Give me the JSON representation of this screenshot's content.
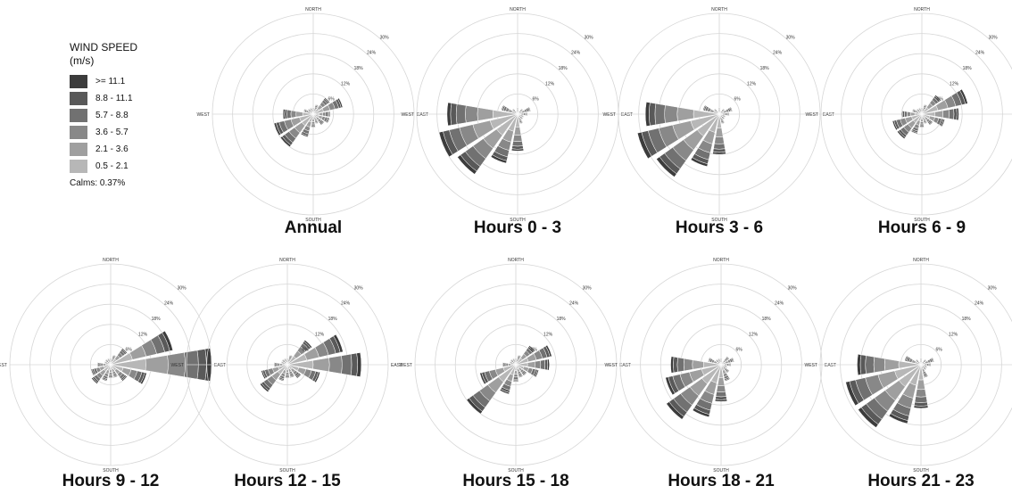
{
  "legend": {
    "title_line1": "WIND SPEED",
    "title_line2": "(m/s)",
    "items": [
      {
        "label": ">= 11.1",
        "color": "#3c3c3c"
      },
      {
        "label": "8.8 - 11.1",
        "color": "#595959"
      },
      {
        "label": "5.7 -  8.8",
        "color": "#717171"
      },
      {
        "label": "3.6 -  5.7",
        "color": "#888888"
      },
      {
        "label": "2.1 -  3.6",
        "color": "#9f9f9f"
      },
      {
        "label": "0.5 -  2.1",
        "color": "#b7b7b7"
      }
    ],
    "calms": "Calms: 0.37%"
  },
  "axis_labels": {
    "north": "NORTH",
    "south": "SOUTH",
    "east": "EAST",
    "west": "WEST"
  },
  "ring_labels": [
    "6%",
    "12%",
    "18%",
    "24%",
    "30%"
  ],
  "chart_data": {
    "type": "wind-rose",
    "units": "% of time",
    "scale_max": 30,
    "directions": [
      "N",
      "NNE",
      "NE",
      "ENE",
      "E",
      "ESE",
      "SE",
      "SSE",
      "S",
      "SSW",
      "SW",
      "WSW",
      "W",
      "WNW",
      "NW",
      "NNW"
    ],
    "speed_bins": [
      ">= 11.1",
      "8.8 - 11.1",
      "5.7 -  8.8",
      "3.6 -  5.7",
      "2.1 -  3.6",
      "0.5 -  2.1"
    ],
    "panels": [
      {
        "title": "Annual",
        "values": [
          2,
          3,
          6,
          9,
          5,
          5,
          4,
          3,
          4,
          7,
          12,
          12,
          9,
          3,
          2,
          2
        ]
      },
      {
        "title": "Hours 0 - 3",
        "values": [
          2,
          1,
          2,
          4,
          3,
          2,
          2,
          3,
          11,
          15,
          22,
          24,
          21,
          5,
          2,
          1
        ]
      },
      {
        "title": "Hours 3 - 6",
        "values": [
          2,
          1,
          2,
          4,
          3,
          2,
          2,
          3,
          12,
          16,
          23,
          25,
          22,
          5,
          2,
          1
        ]
      },
      {
        "title": "Hours 6 - 9",
        "values": [
          2,
          3,
          7,
          14,
          11,
          7,
          4,
          3,
          4,
          6,
          9,
          9,
          6,
          3,
          2,
          2
        ]
      },
      {
        "title": "Hours 9 - 12",
        "values": [
          2,
          3,
          6,
          19,
          30,
          11,
          6,
          4,
          4,
          5,
          7,
          6,
          4,
          2,
          2,
          2
        ]
      },
      {
        "title": "Hours 12 - 15",
        "values": [
          2,
          3,
          9,
          17,
          22,
          10,
          5,
          4,
          4,
          5,
          10,
          8,
          4,
          2,
          2,
          2
        ]
      },
      {
        "title": "Hours 15 - 18",
        "values": [
          2,
          3,
          7,
          11,
          10,
          7,
          4,
          4,
          5,
          9,
          18,
          11,
          4,
          2,
          2,
          2
        ]
      },
      {
        "title": "Hours 18 - 21",
        "values": [
          2,
          1,
          3,
          4,
          3,
          2,
          3,
          5,
          11,
          16,
          20,
          17,
          15,
          4,
          2,
          2
        ]
      },
      {
        "title": "Hours 21 - 23",
        "values": [
          2,
          1,
          2,
          4,
          3,
          2,
          2,
          4,
          13,
          18,
          23,
          23,
          19,
          5,
          2,
          1
        ]
      }
    ]
  }
}
